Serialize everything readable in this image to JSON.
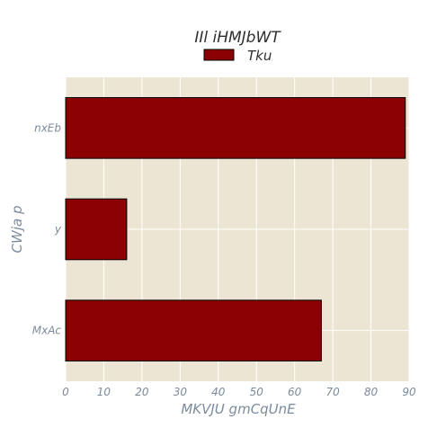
{
  "chart_data": {
    "type": "bar",
    "orientation": "horizontal",
    "title": "IIl iHMJbWT",
    "xlabel": "MKVJU  gmCqUnE",
    "ylabel": "CWja p",
    "categories": [
      "nxEb",
      "y",
      "MxAc"
    ],
    "series": [
      {
        "name": "Tku",
        "values": [
          89,
          16,
          67
        ]
      }
    ],
    "xlim": [
      0,
      90
    ],
    "xticks": [
      0,
      10,
      20,
      30,
      40,
      50,
      60,
      70,
      80,
      90
    ],
    "grid": true,
    "legend_position": "top-center",
    "colors": {
      "bar_fill": "#8b0000",
      "bar_edge": "#000000",
      "plot_background": "#ede5d4",
      "grid": "#ffffff",
      "label_text": "#7c8b9c",
      "title_text": "#2f2f2f"
    }
  }
}
